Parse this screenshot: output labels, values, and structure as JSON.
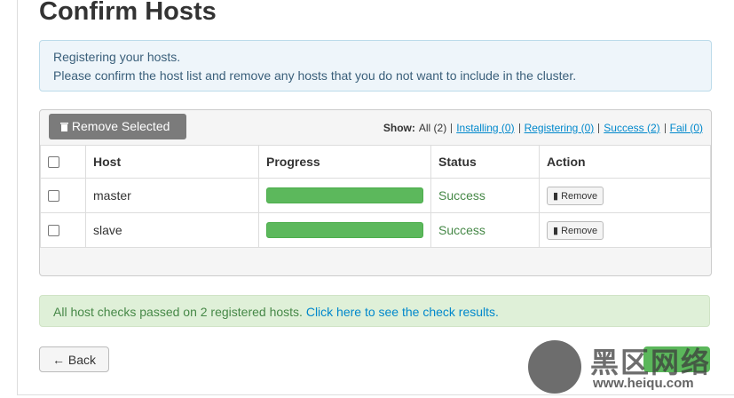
{
  "header": {
    "title": "Confirm Hosts"
  },
  "info": {
    "lines": [
      "Registering your hosts.",
      "Please confirm the host list and remove any hosts that you do not want to include in the cluster."
    ]
  },
  "toolbar": {
    "remove_selected": "Remove Selected",
    "show_label": "Show:",
    "filters": [
      "All (2)",
      "Installing (0)",
      "Registering (0)",
      "Success (2)",
      "Fail (0)"
    ]
  },
  "table": {
    "columns": [
      "Host",
      "Progress",
      "Status",
      "Action"
    ],
    "rows": [
      {
        "host": "master",
        "status": "Success",
        "action": "Remove"
      },
      {
        "host": "slave",
        "status": "Success",
        "action": "Remove"
      }
    ]
  },
  "alert": {
    "text": "All host checks passed on 2 registered hosts.",
    "link": "Click here to see the check results."
  },
  "footer": {
    "back": "← Back"
  },
  "watermark": {
    "name": "黑区网络",
    "url": "www.heiqu.com"
  }
}
